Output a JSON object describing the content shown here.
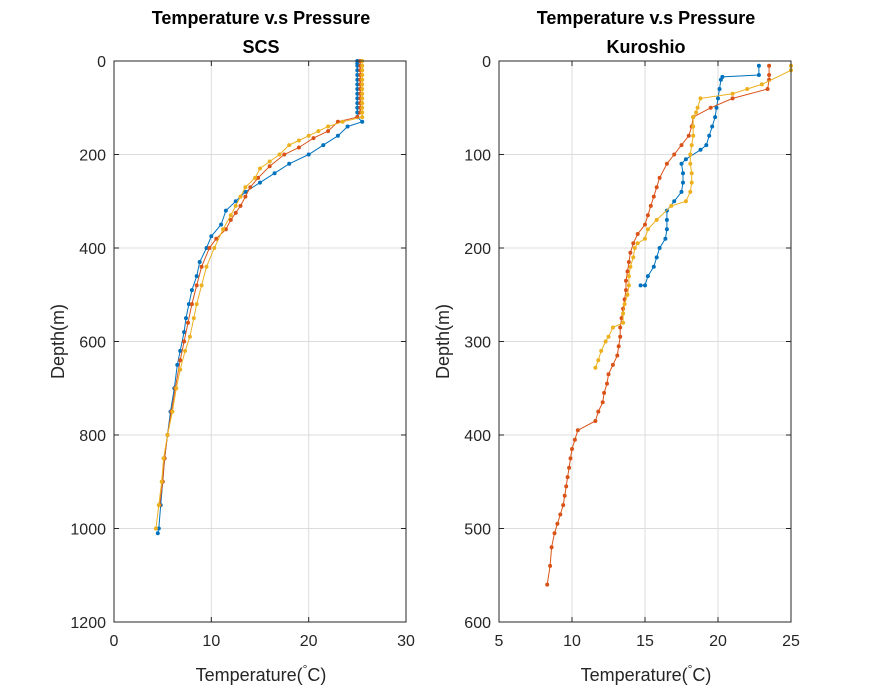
{
  "chart_data": [
    {
      "type": "line",
      "title": "Temperature v.s Pressure",
      "subtitle": "SCS",
      "xlabel": "Temperature(",
      "xlabel_unit": "C)",
      "ylabel": "Depth(m)",
      "xlim": [
        0,
        30
      ],
      "ylim": [
        0,
        1200
      ],
      "y_reversed": true,
      "grid": true,
      "xticks": [
        0,
        10,
        20,
        30
      ],
      "yticks": [
        0,
        200,
        400,
        600,
        800,
        1000,
        1200
      ],
      "series": [
        {
          "color": "#0072BD",
          "points": [
            [
              25,
              0
            ],
            [
              25,
              5
            ],
            [
              25,
              10
            ],
            [
              25,
              20
            ],
            [
              25,
              30
            ],
            [
              25,
              40
            ],
            [
              25,
              50
            ],
            [
              25,
              60
            ],
            [
              25,
              70
            ],
            [
              25,
              80
            ],
            [
              25,
              90
            ],
            [
              25,
              100
            ],
            [
              25,
              110
            ],
            [
              25,
              120
            ],
            [
              25.5,
              130
            ],
            [
              24,
              140
            ],
            [
              23,
              160
            ],
            [
              21.5,
              180
            ],
            [
              20,
              200
            ],
            [
              18,
              220
            ],
            [
              16.5,
              240
            ],
            [
              15,
              260
            ],
            [
              13.5,
              280
            ],
            [
              12.5,
              300
            ],
            [
              11.5,
              320
            ],
            [
              11,
              350
            ],
            [
              10,
              375
            ],
            [
              9.5,
              400
            ],
            [
              8.8,
              430
            ],
            [
              8.5,
              460
            ],
            [
              8,
              490
            ],
            [
              7.7,
              520
            ],
            [
              7.4,
              550
            ],
            [
              7.2,
              580
            ],
            [
              6.8,
              620
            ],
            [
              6.5,
              650
            ],
            [
              6.2,
              700
            ],
            [
              5.8,
              750
            ],
            [
              5.5,
              800
            ],
            [
              5.2,
              850
            ],
            [
              5,
              900
            ],
            [
              4.8,
              950
            ],
            [
              4.6,
              1000
            ],
            [
              4.5,
              1010
            ]
          ]
        },
        {
          "color": "#D95319",
          "points": [
            [
              25.3,
              0
            ],
            [
              25.3,
              10
            ],
            [
              25.3,
              20
            ],
            [
              25.3,
              30
            ],
            [
              25.3,
              40
            ],
            [
              25.3,
              50
            ],
            [
              25.3,
              60
            ],
            [
              25.3,
              70
            ],
            [
              25.3,
              80
            ],
            [
              25.3,
              90
            ],
            [
              25.3,
              100
            ],
            [
              25.3,
              110
            ],
            [
              25,
              120
            ],
            [
              23,
              130
            ],
            [
              22,
              150
            ],
            [
              20.5,
              165
            ],
            [
              19,
              185
            ],
            [
              17.5,
              200
            ],
            [
              16,
              225
            ],
            [
              14.8,
              250
            ],
            [
              14,
              270
            ],
            [
              13.5,
              290
            ],
            [
              13,
              310
            ],
            [
              12.5,
              325
            ],
            [
              12,
              340
            ],
            [
              11.5,
              360
            ],
            [
              10.5,
              380
            ],
            [
              9.8,
              400
            ],
            [
              9,
              440
            ],
            [
              8.5,
              480
            ],
            [
              8,
              520
            ],
            [
              7.6,
              560
            ],
            [
              7.2,
              600
            ],
            [
              6.8,
              640
            ],
            [
              6.3,
              700
            ],
            [
              5.9,
              750
            ],
            [
              5.5,
              800
            ],
            [
              5.2,
              850
            ],
            [
              5,
              900
            ],
            [
              4.7,
              950
            ]
          ]
        },
        {
          "color": "#EDB120",
          "points": [
            [
              25.5,
              0
            ],
            [
              25.5,
              10
            ],
            [
              25.5,
              20
            ],
            [
              25.5,
              30
            ],
            [
              25.5,
              40
            ],
            [
              25.5,
              50
            ],
            [
              25.5,
              60
            ],
            [
              25.5,
              70
            ],
            [
              25.5,
              80
            ],
            [
              25.5,
              90
            ],
            [
              25.5,
              100
            ],
            [
              25.5,
              110
            ],
            [
              25.5,
              120
            ],
            [
              23.5,
              130
            ],
            [
              22,
              140
            ],
            [
              21,
              150
            ],
            [
              20,
              160
            ],
            [
              19,
              170
            ],
            [
              18,
              180
            ],
            [
              17,
              200
            ],
            [
              16,
              215
            ],
            [
              15,
              230
            ],
            [
              14.5,
              250
            ],
            [
              13.5,
              270
            ],
            [
              13,
              290
            ],
            [
              12.5,
              310
            ],
            [
              12,
              330
            ],
            [
              11.2,
              360
            ],
            [
              10.3,
              400
            ],
            [
              9.5,
              440
            ],
            [
              9,
              480
            ],
            [
              8.5,
              520
            ],
            [
              8.2,
              550
            ],
            [
              7.8,
              590
            ],
            [
              7.3,
              620
            ],
            [
              6.8,
              660
            ],
            [
              6.4,
              700
            ],
            [
              6,
              750
            ],
            [
              5.5,
              800
            ],
            [
              5.1,
              850
            ],
            [
              4.9,
              900
            ],
            [
              4.6,
              950
            ],
            [
              4.3,
              1000
            ]
          ]
        }
      ]
    },
    {
      "type": "line",
      "title": "Temperature v.s Pressure",
      "subtitle": "Kuroshio",
      "xlabel": "Temperature(",
      "xlabel_unit": "C)",
      "ylabel": "Depth(m)",
      "xlim": [
        5,
        25
      ],
      "ylim": [
        0,
        600
      ],
      "y_reversed": true,
      "grid": true,
      "xticks": [
        5,
        10,
        15,
        20,
        25
      ],
      "yticks": [
        0,
        100,
        200,
        300,
        400,
        500,
        600
      ],
      "series": [
        {
          "color": "#0072BD",
          "points": [
            [
              22.8,
              5
            ],
            [
              22.8,
              15
            ],
            [
              20.3,
              17
            ],
            [
              20.2,
              20
            ],
            [
              20.1,
              30
            ],
            [
              20,
              40
            ],
            [
              19.9,
              50
            ],
            [
              19.8,
              60
            ],
            [
              19.6,
              70
            ],
            [
              19.4,
              80
            ],
            [
              19.2,
              90
            ],
            [
              18.8,
              95
            ],
            [
              17.8,
              105
            ],
            [
              17.5,
              110
            ],
            [
              17.6,
              120
            ],
            [
              17.6,
              130
            ],
            [
              17.5,
              140
            ],
            [
              17,
              150
            ],
            [
              16.5,
              160
            ],
            [
              16.5,
              170
            ],
            [
              16.5,
              180
            ],
            [
              16.4,
              190
            ],
            [
              16,
              200
            ],
            [
              15.8,
              210
            ],
            [
              15.6,
              220
            ],
            [
              15.2,
              230
            ],
            [
              15,
              240
            ],
            [
              14.7,
              240
            ]
          ]
        },
        {
          "color": "#D95319",
          "points": [
            [
              23.5,
              5
            ],
            [
              23.5,
              15
            ],
            [
              23.5,
              20
            ],
            [
              23.4,
              30
            ],
            [
              21,
              40
            ],
            [
              19.5,
              50
            ],
            [
              18.3,
              60
            ],
            [
              18.2,
              70
            ],
            [
              18,
              80
            ],
            [
              17.5,
              90
            ],
            [
              17,
              100
            ],
            [
              16.5,
              110
            ],
            [
              16,
              125
            ],
            [
              15.8,
              135
            ],
            [
              15.6,
              145
            ],
            [
              15.4,
              155
            ],
            [
              15.2,
              165
            ],
            [
              15,
              175
            ],
            [
              14.5,
              185
            ],
            [
              14.2,
              195
            ],
            [
              14,
              205
            ],
            [
              13.9,
              215
            ],
            [
              13.8,
              225
            ],
            [
              13.7,
              235
            ],
            [
              13.7,
              245
            ],
            [
              13.6,
              255
            ],
            [
              13.5,
              265
            ],
            [
              13.4,
              275
            ],
            [
              13.3,
              285
            ],
            [
              13.3,
              295
            ],
            [
              13.2,
              305
            ],
            [
              13.1,
              315
            ],
            [
              12.8,
              325
            ],
            [
              12.5,
              335
            ],
            [
              12.4,
              345
            ],
            [
              12.2,
              355
            ],
            [
              12.1,
              365
            ],
            [
              11.8,
              375
            ],
            [
              11.6,
              385
            ],
            [
              10.4,
              395
            ],
            [
              10.2,
              405
            ],
            [
              10,
              415
            ],
            [
              9.9,
              425
            ],
            [
              9.8,
              435
            ],
            [
              9.7,
              445
            ],
            [
              9.6,
              455
            ],
            [
              9.5,
              465
            ],
            [
              9.4,
              475
            ],
            [
              9.2,
              485
            ],
            [
              9,
              495
            ],
            [
              8.8,
              505
            ],
            [
              8.6,
              520
            ],
            [
              8.5,
              540
            ],
            [
              8.3,
              560
            ]
          ]
        },
        {
          "color": "#EDB120",
          "points": [
            [
              25,
              5
            ],
            [
              25,
              10
            ],
            [
              23,
              25
            ],
            [
              22,
              30
            ],
            [
              21,
              35
            ],
            [
              18.8,
              40
            ],
            [
              18.6,
              50
            ],
            [
              18.5,
              55
            ],
            [
              18.3,
              60
            ],
            [
              18.3,
              70
            ],
            [
              18.3,
              80
            ],
            [
              18.2,
              90
            ],
            [
              18.1,
              100
            ],
            [
              18.1,
              110
            ],
            [
              18.2,
              120
            ],
            [
              18.2,
              130
            ],
            [
              18.1,
              140
            ],
            [
              17.8,
              150
            ],
            [
              16.8,
              155
            ],
            [
              15.8,
              170
            ],
            [
              15.2,
              180
            ],
            [
              15,
              190
            ],
            [
              14.5,
              195
            ],
            [
              14.3,
              200
            ],
            [
              14.2,
              210
            ],
            [
              14,
              220
            ],
            [
              13.9,
              230
            ],
            [
              13.9,
              240
            ],
            [
              13.8,
              250
            ],
            [
              13.6,
              260
            ],
            [
              13.5,
              270
            ],
            [
              13.5,
              280
            ],
            [
              12.8,
              285
            ],
            [
              12.5,
              295
            ],
            [
              12.3,
              300
            ],
            [
              12,
              310
            ],
            [
              11.8,
              320
            ],
            [
              11.6,
              328
            ]
          ]
        }
      ]
    }
  ]
}
